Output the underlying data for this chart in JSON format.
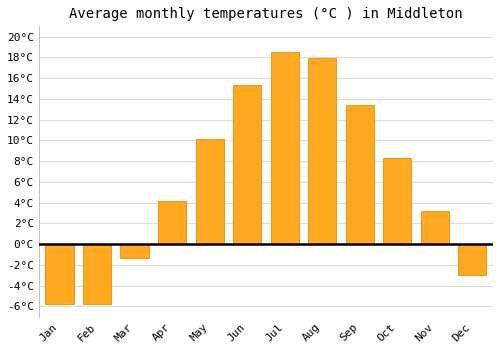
{
  "title": "Average monthly temperatures (°C ) in Middleton",
  "months": [
    "Jan",
    "Feb",
    "Mar",
    "Apr",
    "May",
    "Jun",
    "Jul",
    "Aug",
    "Sep",
    "Oct",
    "Nov",
    "Dec"
  ],
  "values": [
    -5.8,
    -5.8,
    -1.3,
    4.2,
    10.1,
    15.3,
    18.5,
    17.9,
    13.4,
    8.3,
    3.2,
    -3.0
  ],
  "bar_color": "#FFA820",
  "bar_edge_color": "#E89000",
  "ylim": [
    -7,
    21
  ],
  "yticks": [
    -6,
    -4,
    -2,
    0,
    2,
    4,
    6,
    8,
    10,
    12,
    14,
    16,
    18,
    20
  ],
  "background_color": "#ffffff",
  "grid_color": "#dddddd",
  "title_fontsize": 10,
  "tick_fontsize": 8,
  "zero_line_color": "#000000",
  "bar_width": 0.75
}
